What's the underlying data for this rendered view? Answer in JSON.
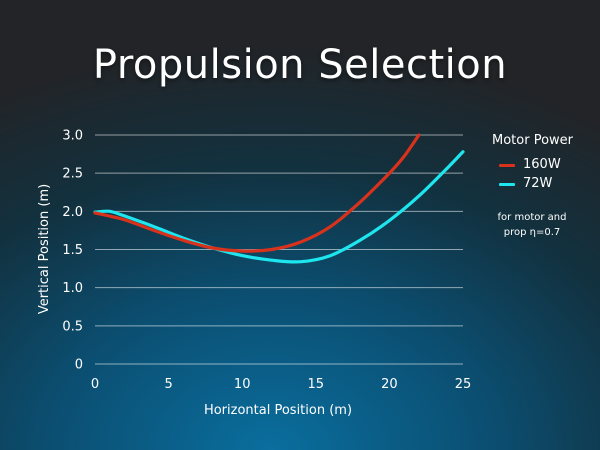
{
  "title": "Propulsion Selection",
  "legend": {
    "title": "Motor Power",
    "items": [
      {
        "label": "160W",
        "color": "#d9321c"
      },
      {
        "label": "72W",
        "color": "#1ee6ee"
      }
    ]
  },
  "note": {
    "line1": "for motor and",
    "line2": "prop η=0.7"
  },
  "chart_data": {
    "type": "line",
    "xlabel": "Horizontal Position (m)",
    "ylabel": "Vertical Position (m)",
    "xlim": [
      0,
      25
    ],
    "ylim": [
      0,
      3
    ],
    "xticks": [
      0,
      5,
      10,
      15,
      20,
      25
    ],
    "yticks": [
      0,
      0.5,
      1.0,
      1.5,
      2.0,
      2.5,
      3.0
    ],
    "ytick_labels": [
      "0",
      "0.5",
      "1.0",
      "1.5",
      "2.0",
      "2.5",
      "3.0"
    ],
    "grid": "horizontal",
    "legend_position": "right",
    "series": [
      {
        "name": "160W",
        "color": "#d9321c",
        "x": [
          0,
          2,
          4,
          6,
          8,
          10,
          12,
          14,
          16,
          18,
          20,
          21,
          22
        ],
        "y": [
          1.98,
          1.89,
          1.75,
          1.62,
          1.52,
          1.48,
          1.5,
          1.6,
          1.8,
          2.12,
          2.5,
          2.72,
          3.0
        ]
      },
      {
        "name": "72W",
        "color": "#1ee6ee",
        "x": [
          0,
          1,
          2,
          4,
          6,
          8,
          10,
          12,
          14,
          16,
          18,
          20,
          22,
          24,
          25
        ],
        "y": [
          1.99,
          2.0,
          1.94,
          1.8,
          1.65,
          1.52,
          1.42,
          1.36,
          1.34,
          1.42,
          1.62,
          1.88,
          2.2,
          2.58,
          2.78
        ]
      }
    ]
  }
}
